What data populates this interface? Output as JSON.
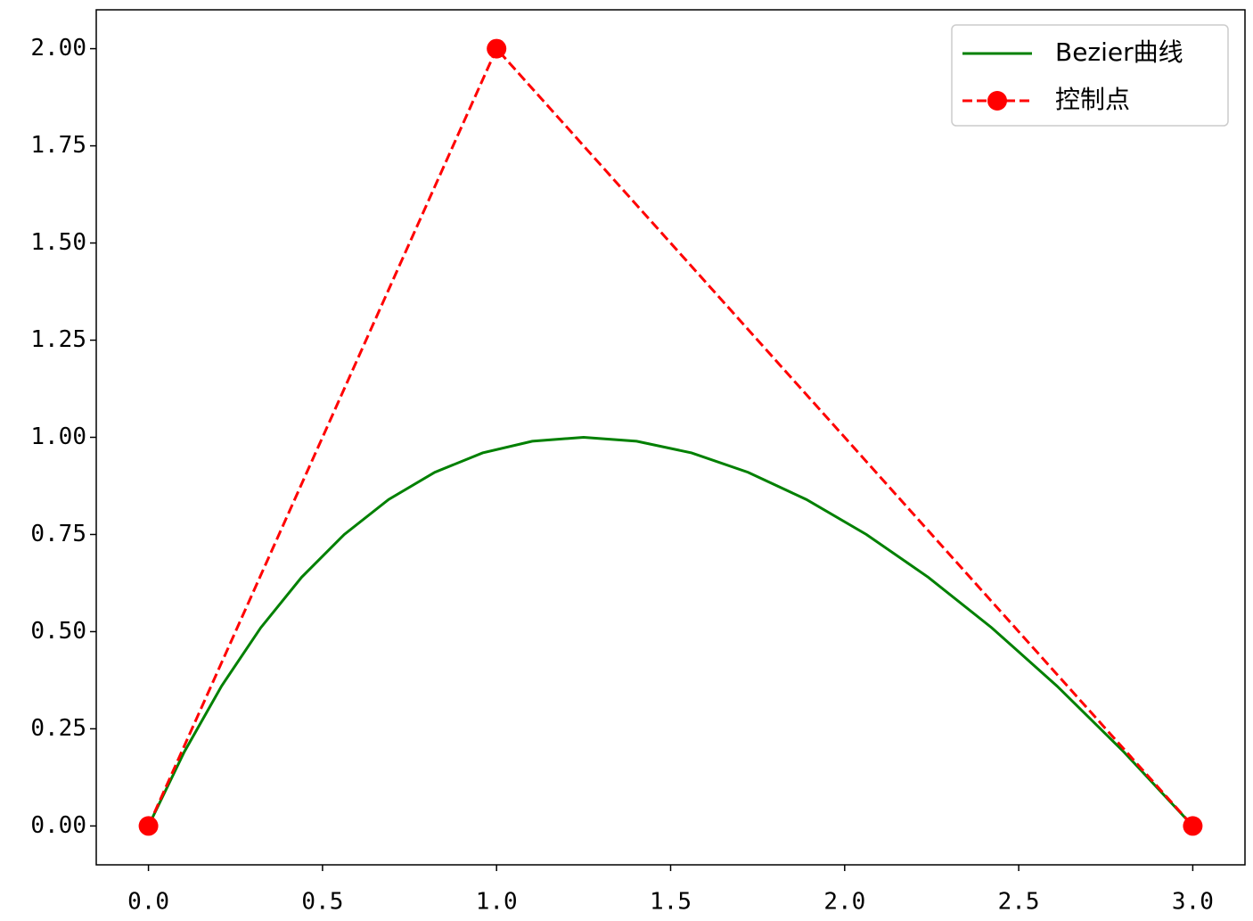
{
  "chart_data": {
    "type": "line",
    "series": [
      {
        "name": "Bezier曲线",
        "color": "#008000",
        "linestyle": "solid",
        "x": [
          0,
          0.1025,
          0.21,
          0.3225,
          0.44,
          0.5625,
          0.69,
          0.8225,
          0.96,
          1.1025,
          1.25,
          1.4025,
          1.56,
          1.7225,
          1.89,
          2.0625,
          2.24,
          2.4225,
          2.61,
          2.8025,
          3
        ],
        "values": [
          0,
          0.19,
          0.36,
          0.51,
          0.64,
          0.75,
          0.84,
          0.91,
          0.96,
          0.99,
          1,
          0.99,
          0.96,
          0.91,
          0.84,
          0.75,
          0.64,
          0.51,
          0.36,
          0.19,
          0
        ]
      },
      {
        "name": "控制点",
        "color": "#ff0000",
        "linestyle": "dashed",
        "marker": "circle",
        "x": [
          0,
          1,
          3
        ],
        "values": [
          0,
          2,
          0
        ]
      }
    ],
    "xlim": [
      -0.15,
      3.15
    ],
    "ylim": [
      -0.1,
      2.1
    ],
    "xticks": [
      {
        "value": 0,
        "label": "0.0"
      },
      {
        "value": 0.5,
        "label": "0.5"
      },
      {
        "value": 1,
        "label": "1.0"
      },
      {
        "value": 1.5,
        "label": "1.5"
      },
      {
        "value": 2,
        "label": "2.0"
      },
      {
        "value": 2.5,
        "label": "2.5"
      },
      {
        "value": 3,
        "label": "3.0"
      }
    ],
    "yticks": [
      {
        "value": 0,
        "label": "0.00"
      },
      {
        "value": 0.25,
        "label": "0.25"
      },
      {
        "value": 0.5,
        "label": "0.50"
      },
      {
        "value": 0.75,
        "label": "0.75"
      },
      {
        "value": 1,
        "label": "1.00"
      },
      {
        "value": 1.25,
        "label": "1.25"
      },
      {
        "value": 1.5,
        "label": "1.50"
      },
      {
        "value": 1.75,
        "label": "1.75"
      },
      {
        "value": 2,
        "label": "2.00"
      }
    ],
    "grid": false,
    "legend": "upper right"
  }
}
